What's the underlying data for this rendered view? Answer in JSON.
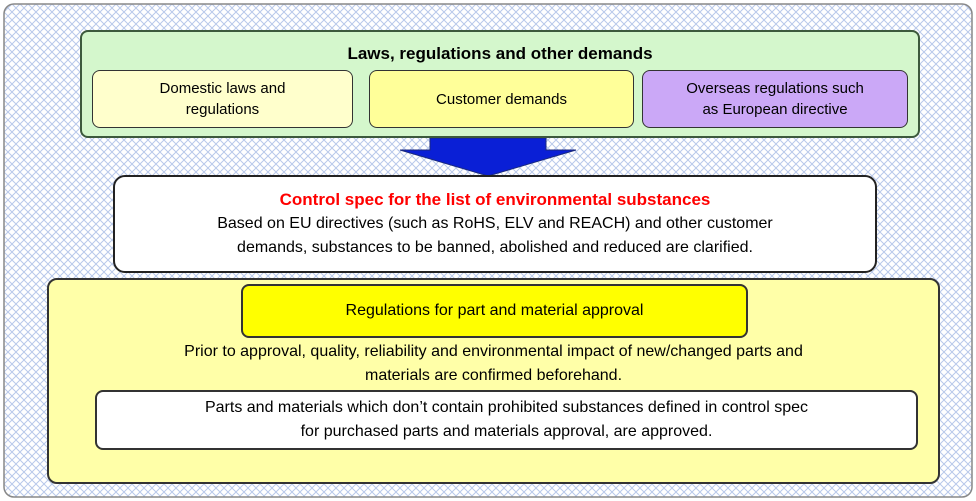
{
  "top": {
    "title": "Laws, regulations and other demands",
    "items": [
      [
        "Domestic laws and",
        "regulations"
      ],
      [
        "Customer demands"
      ],
      [
        "Overseas regulations such",
        "as European directive"
      ]
    ]
  },
  "control_spec": {
    "title": "Control spec for the list of environmental substances",
    "lines": [
      "Based on EU directives (such as RoHS, ELV and REACH) and other customer",
      "demands, substances to be banned, abolished and reduced are clarified."
    ]
  },
  "approval": {
    "title": "Regulations for part and material approval",
    "lines": [
      "Prior to approval, quality, reliability and environmental impact of new/changed parts and",
      "materials are confirmed beforehand."
    ],
    "note": [
      "Parts and materials which don’t contain prohibited substances defined in control spec",
      "for purchased parts and materials approval, are approved."
    ]
  }
}
